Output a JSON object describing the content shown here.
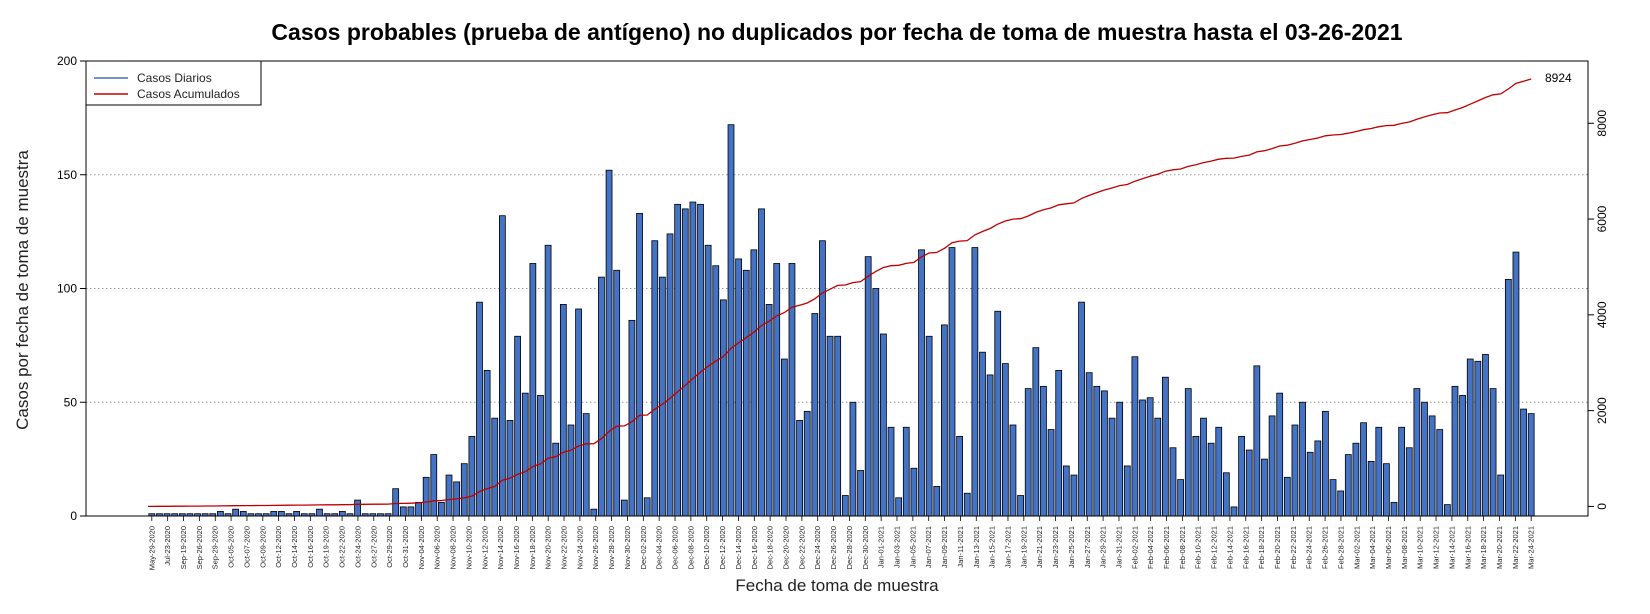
{
  "chart_data": {
    "type": "bar",
    "title": "Casos probables (prueba de antígeno) no duplicados por fecha de toma de muestra hasta el 03-26-2021",
    "xlabel": "Fecha de toma de muestra",
    "ylabel": "Casos por fecha de toma de muestra",
    "ylim": [
      0,
      200
    ],
    "y_ticks": [
      0,
      50,
      100,
      150,
      200
    ],
    "y2lim": [
      -200,
      9300
    ],
    "y2_ticks": [
      0,
      2000,
      4000,
      6000,
      8000
    ],
    "grid": "horizontal dotted",
    "legend_position": "top-left",
    "colors": {
      "bars": "#4472c4",
      "bar_edge": "#000000",
      "cumulative_line": "#c00000",
      "daily_legend_line": "#4472c4"
    },
    "series": [
      {
        "name": "Casos Diarios",
        "values": [
          1,
          1,
          1,
          1,
          1,
          1,
          1,
          1,
          1,
          2,
          1,
          3,
          2,
          1,
          1,
          1,
          2,
          2,
          1,
          2,
          1,
          1,
          3,
          1,
          1,
          2,
          1,
          7,
          1,
          1,
          1,
          1,
          12,
          4,
          4,
          6,
          17,
          27,
          6,
          18,
          15,
          23,
          35,
          94,
          64,
          43,
          132,
          42,
          79,
          54,
          111,
          53,
          119,
          32,
          93,
          40,
          91,
          45,
          3,
          105,
          152,
          108,
          7,
          86,
          133,
          8,
          121,
          105,
          124,
          137,
          135,
          138,
          137,
          119,
          110,
          95,
          172,
          113,
          108,
          117,
          135,
          93,
          111,
          69,
          111,
          42,
          46,
          89,
          121,
          79,
          79,
          9,
          50,
          20,
          114,
          100,
          80,
          39,
          8,
          39,
          21,
          117,
          79,
          13,
          84,
          118,
          35,
          10,
          118,
          72,
          62,
          90,
          67,
          40,
          9,
          56,
          74,
          57,
          38,
          64,
          22,
          18,
          94,
          63,
          57,
          55,
          43,
          50,
          22,
          70,
          51,
          52,
          43,
          61,
          30,
          16,
          56,
          35,
          43,
          32,
          39,
          19,
          4,
          35,
          29,
          66,
          25,
          44,
          54,
          17,
          40,
          50,
          28,
          33,
          46,
          16,
          11,
          27,
          32,
          41,
          24,
          39,
          23,
          6,
          39,
          30,
          56,
          50,
          44,
          38,
          5,
          57,
          53,
          69,
          68,
          71,
          56,
          18,
          104,
          116,
          47,
          45
        ]
      },
      {
        "name": "Casos Acumulados",
        "final_value": 8924
      }
    ],
    "x_tick_labels": [
      "May-29-2020",
      "Jul-23-2020",
      "Sep-19-2020",
      "Sep-26-2020",
      "Sep-29-2020",
      "Oct-05-2020",
      "Oct-07-2020",
      "Oct-09-2020",
      "Oct-12-2020",
      "Oct-14-2020",
      "Oct-16-2020",
      "Oct-19-2020",
      "Oct-22-2020",
      "Oct-24-2020",
      "Oct-27-2020",
      "Oct-29-2020",
      "Oct-31-2020",
      "Nov-04-2020",
      "Nov-06-2020",
      "Nov-08-2020",
      "Nov-10-2020",
      "Nov-12-2020",
      "Nov-14-2020",
      "Nov-16-2020",
      "Nov-18-2020",
      "Nov-20-2020",
      "Nov-22-2020",
      "Nov-24-2020",
      "Nov-26-2020",
      "Nov-28-2020",
      "Nov-30-2020",
      "Dec-02-2020",
      "Dec-04-2020",
      "Dec-06-2020",
      "Dec-08-2020",
      "Dec-10-2020",
      "Dec-12-2020",
      "Dec-14-2020",
      "Dec-16-2020",
      "Dec-18-2020",
      "Dec-20-2020",
      "Dec-22-2020",
      "Dec-24-2020",
      "Dec-26-2020",
      "Dec-28-2020",
      "Dec-30-2020",
      "Jan-01-2021",
      "Jan-03-2021",
      "Jan-05-2021",
      "Jan-07-2021",
      "Jan-09-2021",
      "Jan-11-2021",
      "Jan-13-2021",
      "Jan-15-2021",
      "Jan-17-2021",
      "Jan-19-2021",
      "Jan-21-2021",
      "Jan-23-2021",
      "Jan-25-2021",
      "Jan-27-2021",
      "Jan-29-2021",
      "Jan-31-2021",
      "Feb-02-2021",
      "Feb-04-2021",
      "Feb-06-2021",
      "Feb-08-2021",
      "Feb-10-2021",
      "Feb-12-2021",
      "Feb-14-2021",
      "Feb-16-2021",
      "Feb-18-2021",
      "Feb-20-2021",
      "Feb-22-2021",
      "Feb-24-2021",
      "Feb-26-2021",
      "Feb-28-2021",
      "Mar-02-2021",
      "Mar-04-2021",
      "Mar-06-2021",
      "Mar-08-2021",
      "Mar-10-2021",
      "Mar-12-2021",
      "Mar-14-2021",
      "Mar-16-2021",
      "Mar-18-2021",
      "Mar-20-2021",
      "Mar-22-2021",
      "Mar-24-2021"
    ],
    "end_label": "8924"
  }
}
